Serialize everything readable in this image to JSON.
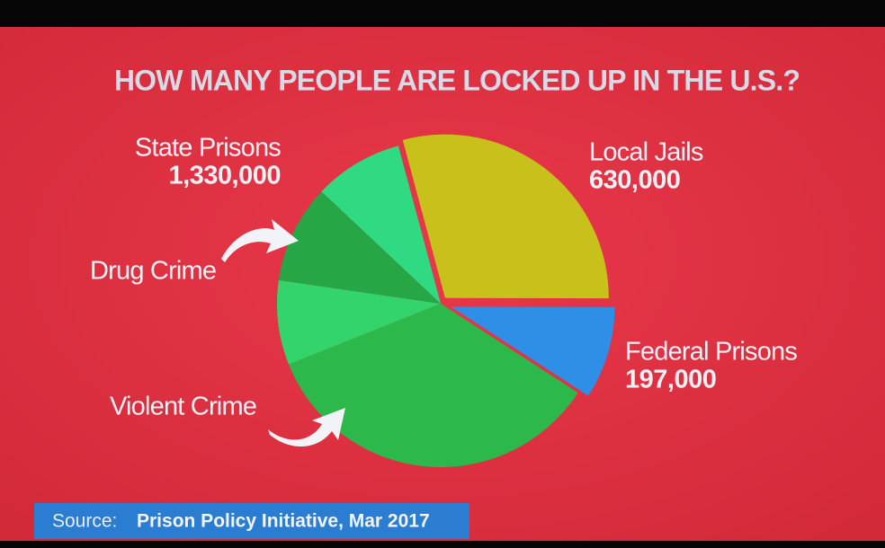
{
  "chart_data": {
    "type": "pie",
    "title": "HOW MANY PEOPLE ARE LOCKED UP IN THE U.S.?",
    "categories": [
      "Local Jails",
      "Federal Prisons",
      "State Prisons"
    ],
    "values": [
      630000,
      197000,
      1330000
    ],
    "value_labels": [
      "630,000",
      "197,000",
      "1,330,000"
    ],
    "colors": [
      "#c8c11c",
      "#2f8fe6",
      "#2db84c"
    ],
    "breakdown": {
      "of": "State Prisons",
      "categories": [
        "Violent Crime",
        null,
        "Drug Crime",
        null
      ],
      "values": [
        750000,
        180000,
        210000,
        190000
      ],
      "colors": [
        "#2db84c",
        "#34d46c",
        "#27a645",
        "#30da82"
      ]
    },
    "source_label": "Source:",
    "source": "Prison Policy Initiative, Mar 2017"
  }
}
